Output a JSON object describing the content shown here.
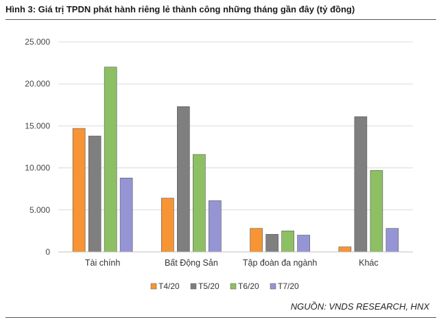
{
  "header": {
    "title": "Hình 3: Giá trị TPDN phát hành riêng lẻ thành công những tháng gần đây (tỷ đồng)"
  },
  "footer": {
    "source": "NGUỒN: VNDS RESEARCH, HNX"
  },
  "chart_data": {
    "type": "bar",
    "title": "",
    "xlabel": "",
    "ylabel": "",
    "categories": [
      "Tài chính",
      "Bất Động Sản",
      "Tập đoàn đa ngành",
      "Khác"
    ],
    "series": [
      {
        "name": "T4/20",
        "color": "#F79433",
        "values": [
          14700,
          6400,
          2800,
          600
        ]
      },
      {
        "name": "T5/20",
        "color": "#7F7F7F",
        "values": [
          13800,
          17300,
          2100,
          16100
        ]
      },
      {
        "name": "T6/20",
        "color": "#8DC063",
        "values": [
          22000,
          11600,
          2500,
          9700
        ]
      },
      {
        "name": "T7/20",
        "color": "#9595D6",
        "values": [
          8800,
          6100,
          2000,
          2800
        ]
      }
    ],
    "yticks": [
      "0",
      "5.000",
      "10.000",
      "15.000",
      "20.000",
      "25.000"
    ],
    "ylim": [
      0,
      25000
    ],
    "grid": "horizontal",
    "legend": "bottom"
  }
}
